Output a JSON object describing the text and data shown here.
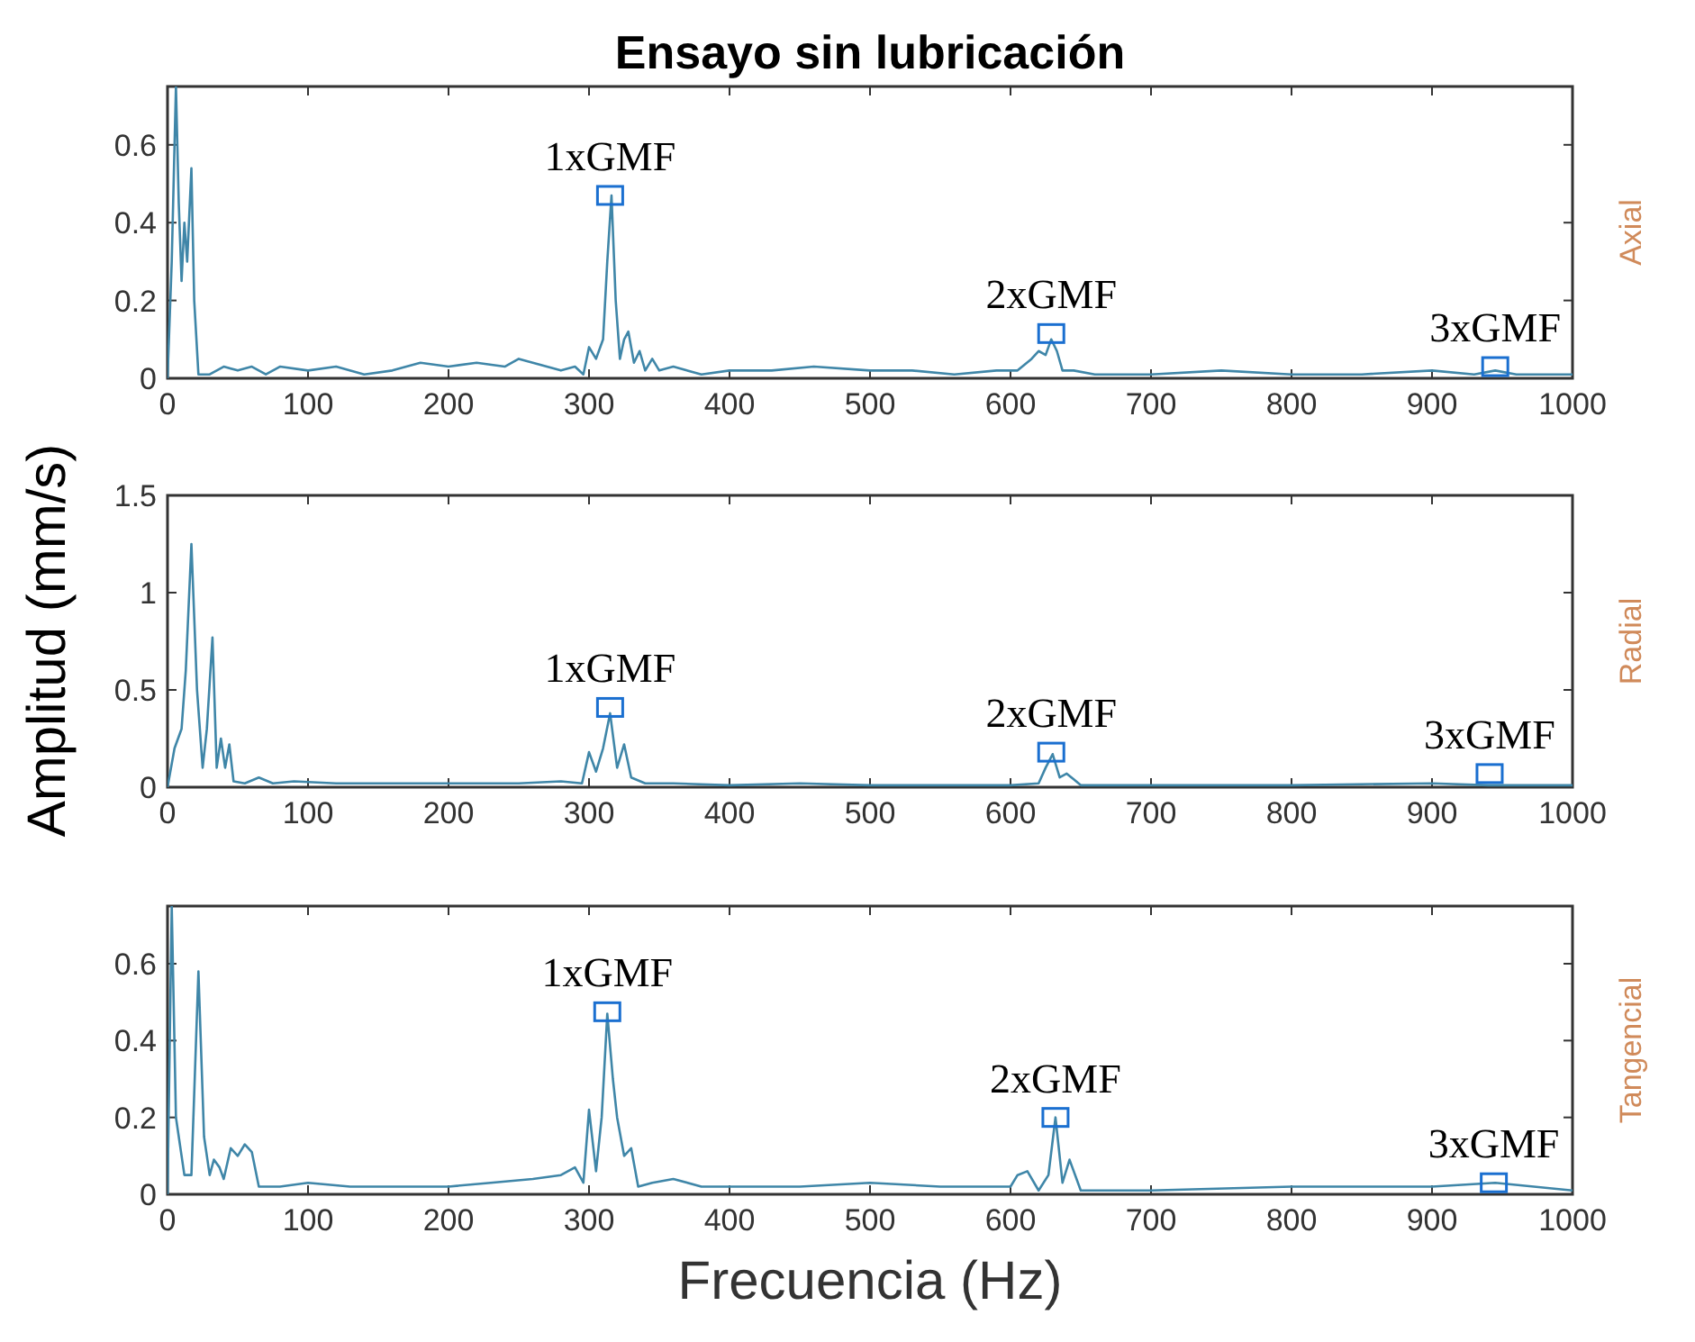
{
  "chart_data": [
    {
      "type": "line",
      "title": "Ensayo sin lubricación",
      "y2label": "Axial",
      "xlim": [
        0,
        1000
      ],
      "xticks": [
        0,
        100,
        200,
        300,
        400,
        500,
        600,
        700,
        800,
        900,
        1000
      ],
      "ylim": [
        0,
        0.75
      ],
      "yticks": [
        0,
        0.2,
        0.4,
        0.6
      ],
      "grid": false,
      "series": [
        {
          "color": "#3f86a8",
          "x": [
            0,
            3,
            6,
            8,
            10,
            12,
            14,
            17,
            19,
            22,
            30,
            40,
            50,
            60,
            70,
            80,
            100,
            120,
            140,
            160,
            180,
            200,
            220,
            240,
            250,
            260,
            270,
            280,
            290,
            296,
            300,
            305,
            310,
            313,
            316,
            319,
            322,
            325,
            328,
            332,
            336,
            340,
            345,
            350,
            360,
            380,
            400,
            430,
            460,
            500,
            530,
            560,
            590,
            605,
            615,
            620,
            625,
            629,
            633,
            637,
            645,
            660,
            700,
            750,
            800,
            850,
            900,
            930,
            945,
            960,
            1000
          ],
          "values": [
            0,
            0.3,
            0.75,
            0.45,
            0.25,
            0.4,
            0.3,
            0.54,
            0.2,
            0.01,
            0.01,
            0.03,
            0.02,
            0.03,
            0.01,
            0.03,
            0.02,
            0.03,
            0.01,
            0.02,
            0.04,
            0.03,
            0.04,
            0.03,
            0.05,
            0.04,
            0.03,
            0.02,
            0.03,
            0.01,
            0.08,
            0.05,
            0.1,
            0.3,
            0.47,
            0.2,
            0.05,
            0.1,
            0.12,
            0.04,
            0.07,
            0.02,
            0.05,
            0.02,
            0.03,
            0.01,
            0.02,
            0.02,
            0.03,
            0.02,
            0.02,
            0.01,
            0.02,
            0.02,
            0.05,
            0.07,
            0.06,
            0.1,
            0.07,
            0.02,
            0.02,
            0.01,
            0.01,
            0.02,
            0.01,
            0.01,
            0.02,
            0.01,
            0.02,
            0.01,
            0.01
          ]
        }
      ],
      "annotations": [
        {
          "text": "1xGMF",
          "x": 315,
          "y": 0.47
        },
        {
          "text": "2xGMF",
          "x": 629,
          "y": 0.115
        },
        {
          "text": "3xGMF",
          "x": 945,
          "y": 0.03
        }
      ]
    },
    {
      "type": "line",
      "ylabel": "Amplitud (mm/s)",
      "y2label": "Radial",
      "xlim": [
        0,
        1000
      ],
      "xticks": [
        0,
        100,
        200,
        300,
        400,
        500,
        600,
        700,
        800,
        900,
        1000
      ],
      "ylim": [
        0,
        1.5
      ],
      "yticks": [
        0,
        0.5,
        1,
        1.5
      ],
      "grid": false,
      "series": [
        {
          "color": "#3f86a8",
          "x": [
            0,
            5,
            10,
            13,
            17,
            21,
            25,
            28,
            32,
            35,
            38,
            41,
            44,
            47,
            55,
            65,
            75,
            90,
            120,
            150,
            200,
            250,
            280,
            295,
            300,
            305,
            310,
            315,
            320,
            325,
            330,
            340,
            360,
            400,
            450,
            500,
            550,
            600,
            620,
            625,
            630,
            635,
            640,
            645,
            650,
            700,
            800,
            900,
            940,
            1000
          ],
          "values": [
            0,
            0.2,
            0.3,
            0.6,
            1.25,
            0.5,
            0.1,
            0.3,
            0.77,
            0.1,
            0.25,
            0.1,
            0.22,
            0.03,
            0.02,
            0.05,
            0.02,
            0.03,
            0.02,
            0.02,
            0.02,
            0.02,
            0.03,
            0.02,
            0.18,
            0.08,
            0.2,
            0.38,
            0.1,
            0.22,
            0.05,
            0.02,
            0.02,
            0.01,
            0.02,
            0.01,
            0.01,
            0.01,
            0.02,
            0.1,
            0.17,
            0.05,
            0.07,
            0.04,
            0.01,
            0.01,
            0.01,
            0.02,
            0.01,
            0.01
          ]
        }
      ],
      "annotations": [
        {
          "text": "1xGMF",
          "x": 315,
          "y": 0.41
        },
        {
          "text": "2xGMF",
          "x": 629,
          "y": 0.18
        },
        {
          "text": "3xGMF",
          "x": 941,
          "y": 0.07
        }
      ]
    },
    {
      "type": "line",
      "xlabel": "Frecuencia (Hz)",
      "y2label": "Tangencial",
      "xlim": [
        0,
        1000
      ],
      "xticks": [
        0,
        100,
        200,
        300,
        400,
        500,
        600,
        700,
        800,
        900,
        1000
      ],
      "ylim": [
        0,
        0.75
      ],
      "yticks": [
        0,
        0.2,
        0.4,
        0.6
      ],
      "grid": false,
      "series": [
        {
          "color": "#3f86a8",
          "x": [
            0,
            3,
            6,
            8,
            12,
            17,
            22,
            26,
            30,
            33,
            37,
            40,
            45,
            50,
            55,
            60,
            65,
            80,
            100,
            130,
            160,
            200,
            230,
            260,
            280,
            290,
            296,
            300,
            305,
            309,
            313,
            317,
            320,
            325,
            330,
            335,
            345,
            360,
            380,
            400,
            450,
            500,
            550,
            600,
            605,
            612,
            620,
            627,
            632,
            637,
            642,
            650,
            700,
            800,
            900,
            945,
            1000
          ],
          "values": [
            0,
            0.75,
            0.2,
            0.15,
            0.05,
            0.05,
            0.58,
            0.15,
            0.05,
            0.09,
            0.07,
            0.04,
            0.12,
            0.1,
            0.13,
            0.11,
            0.02,
            0.02,
            0.03,
            0.02,
            0.02,
            0.02,
            0.03,
            0.04,
            0.05,
            0.07,
            0.03,
            0.22,
            0.06,
            0.2,
            0.47,
            0.3,
            0.2,
            0.1,
            0.12,
            0.02,
            0.03,
            0.04,
            0.02,
            0.02,
            0.02,
            0.03,
            0.02,
            0.02,
            0.05,
            0.06,
            0.01,
            0.05,
            0.2,
            0.03,
            0.09,
            0.01,
            0.01,
            0.02,
            0.02,
            0.03,
            0.01
          ]
        }
      ],
      "annotations": [
        {
          "text": "1xGMF",
          "x": 313,
          "y": 0.475
        },
        {
          "text": "2xGMF",
          "x": 632,
          "y": 0.2
        },
        {
          "text": "3xGMF",
          "x": 944,
          "y": 0.03
        }
      ]
    }
  ]
}
